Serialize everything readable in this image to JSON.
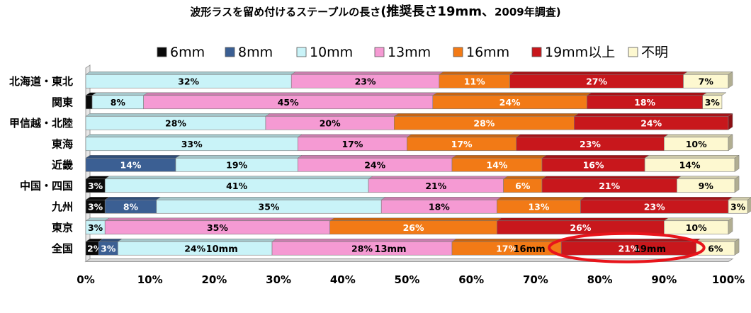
{
  "chart_data": {
    "type": "bar",
    "orientation": "horizontal",
    "stacked": true,
    "title": "波形ラスを留め付けるステープルの長さ",
    "title_emphasis": "(推奨長さ19mm、",
    "title_suffix": "2009年調査)",
    "categories": [
      "北海道・東北",
      "関東",
      "甲信越・北陸",
      "東海",
      "近畿",
      "中国・四国",
      "九州",
      "東京",
      "全国"
    ],
    "series": [
      {
        "name": "6mm",
        "color": "#0a0a0a",
        "text_color": "#ffffff",
        "values": [
          0,
          1,
          0,
          0,
          0,
          3,
          3,
          0,
          2
        ]
      },
      {
        "name": "8mm",
        "color": "#3b5f93",
        "text_color": "#ffffff",
        "values": [
          0,
          0,
          0,
          0,
          14,
          0,
          8,
          0,
          3
        ]
      },
      {
        "name": "10mm",
        "color": "#c9f3f8",
        "text_color": "#000000",
        "values": [
          32,
          8,
          28,
          33,
          19,
          41,
          35,
          3,
          24
        ]
      },
      {
        "name": "13mm",
        "color": "#f59ad3",
        "text_color": "#000000",
        "values": [
          23,
          45,
          20,
          17,
          24,
          21,
          18,
          35,
          28
        ]
      },
      {
        "name": "16mm",
        "color": "#f27a16",
        "text_color": "#ffffff",
        "values": [
          11,
          24,
          28,
          17,
          14,
          6,
          13,
          26,
          17
        ]
      },
      {
        "name": "19mm以上",
        "color": "#c8171c",
        "text_color": "#ffffff",
        "values": [
          27,
          18,
          24,
          23,
          16,
          21,
          23,
          26,
          21
        ]
      },
      {
        "name": "不明",
        "color": "#fdf8d0",
        "text_color": "#000000",
        "values": [
          7,
          3,
          0,
          10,
          14,
          9,
          3,
          10,
          6
        ]
      }
    ],
    "segment_labels": [
      [
        "",
        "",
        "32%",
        "23%",
        "11%",
        "27%",
        "7%"
      ],
      [
        "",
        "1",
        "8%",
        "45%",
        "24%",
        "18%",
        "3%"
      ],
      [
        "",
        "",
        "28%",
        "20%",
        "28%",
        "24%",
        ""
      ],
      [
        "",
        "",
        "33%",
        "17%",
        "17%",
        "23%",
        "10%"
      ],
      [
        "",
        "14%",
        "19%",
        "24%",
        "14%",
        "16%",
        "14%"
      ],
      [
        "3%",
        "",
        "41%",
        "21%",
        "6%",
        "21%",
        "9%"
      ],
      [
        "3%",
        "8%",
        "35%",
        "18%",
        "13%",
        "23%",
        "3%"
      ],
      [
        "",
        "",
        "3%",
        "35%",
        "26%",
        "26%",
        "10%"
      ],
      [
        "2%",
        "3%",
        "24%",
        "28%",
        "17%",
        "21%",
        "6%"
      ]
    ],
    "annotations": [
      {
        "category": "全国",
        "series": "10mm",
        "text": "10mm"
      },
      {
        "category": "全国",
        "series": "13mm",
        "text": "13mm"
      },
      {
        "category": "全国",
        "series": "16mm",
        "text": "16mm"
      },
      {
        "category": "全国",
        "series": "19mm以上",
        "text": "19mm"
      }
    ],
    "highlight": {
      "category": "全国",
      "series": "19mm以上",
      "shape": "ellipse",
      "color": "#e8141b"
    },
    "xlim": [
      0,
      100
    ],
    "x_ticks": [
      "0%",
      "10%",
      "20%",
      "30%",
      "40%",
      "50%",
      "60%",
      "70%",
      "80%",
      "90%",
      "100%"
    ],
    "legend_position": "top",
    "grid": false
  }
}
